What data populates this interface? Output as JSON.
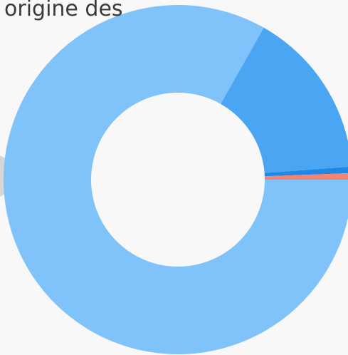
{
  "chart_data": {
    "type": "pie",
    "title": "origine des",
    "categories": [
      null,
      null,
      null,
      null
    ],
    "values": [
      83.2,
      15.6,
      0.6,
      0.6
    ],
    "colors": [
      "#7fc3fa",
      "#4aa5f2",
      "#1e88e5",
      "#f4846f"
    ],
    "donut": true
  }
}
